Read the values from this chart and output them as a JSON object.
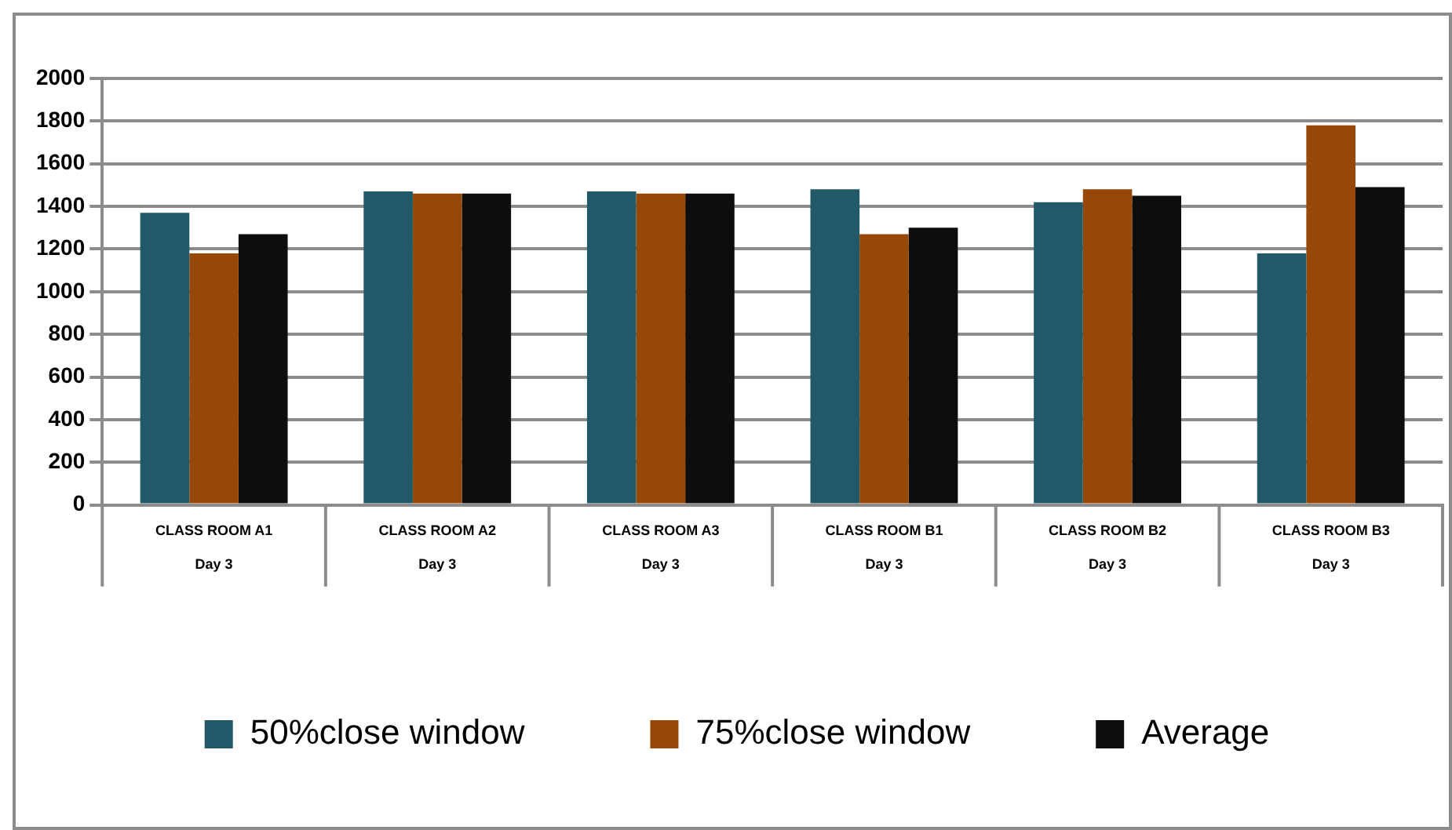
{
  "chart_data": {
    "type": "bar",
    "categories": [
      "CLASS ROOM A1\nDay 3",
      "CLASS ROOM A2\nDay 3",
      "CLASS ROOM A3\nDay 3",
      "CLASS ROOM B1\nDay 3",
      "CLASS ROOM B2\nDay 3",
      "CLASS ROOM B3\nDay 3"
    ],
    "series": [
      {
        "name": "50%close window",
        "color": "#215968",
        "values": [
          1370,
          1470,
          1470,
          1480,
          1420,
          1180
        ]
      },
      {
        "name": "75%close window",
        "color": "#974706",
        "values": [
          1180,
          1460,
          1460,
          1270,
          1480,
          1780
        ]
      },
      {
        "name": "Average",
        "color": "#0d0d0d",
        "values": [
          1270,
          1460,
          1460,
          1300,
          1450,
          1490
        ]
      }
    ],
    "ylim": [
      0,
      2000
    ],
    "yticks": [
      0,
      200,
      400,
      600,
      800,
      1000,
      1200,
      1400,
      1600,
      1800,
      2000
    ],
    "grid": "y",
    "legend": "bottom"
  }
}
